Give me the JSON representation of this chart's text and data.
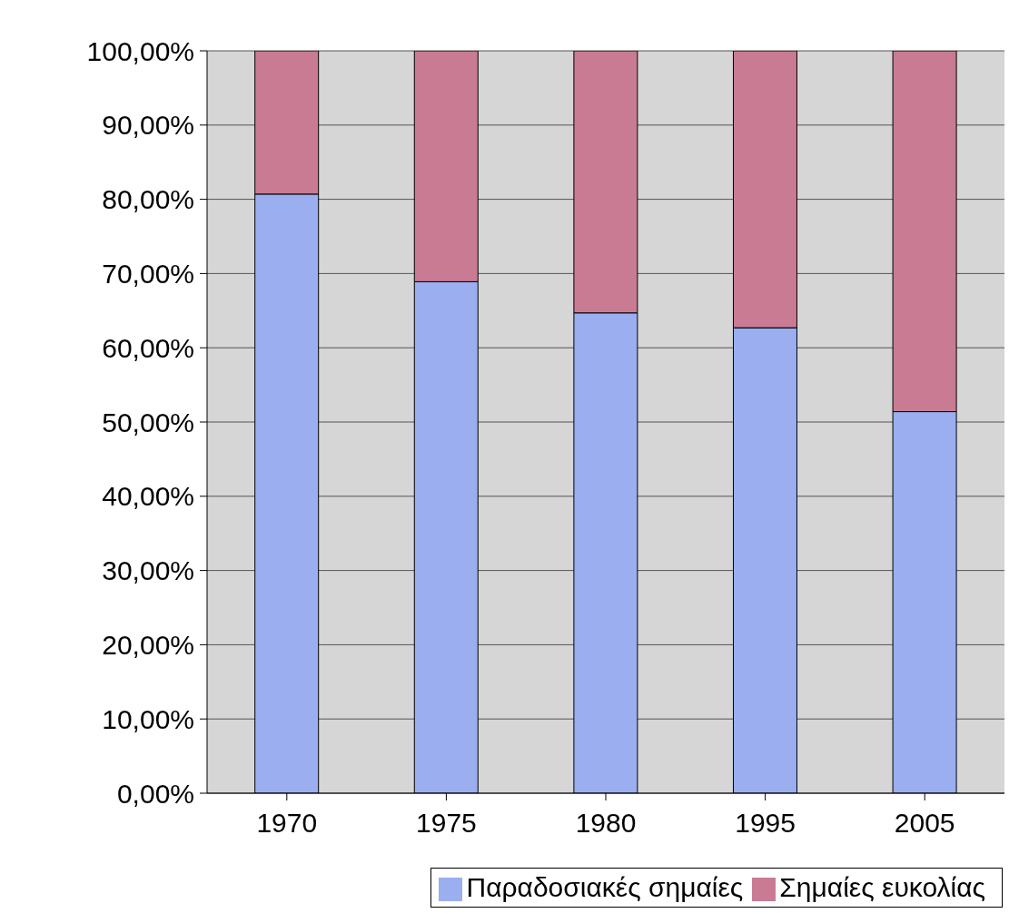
{
  "chart_data": {
    "type": "bar",
    "stacked": true,
    "categories": [
      "1970",
      "1975",
      "1980",
      "1995",
      "2005"
    ],
    "series": [
      {
        "name": "Παραδοσιακές σημαίες",
        "color": "#9aaef0",
        "values": [
          80.7,
          68.9,
          64.7,
          62.7,
          51.4
        ]
      },
      {
        "name": "Σημαίες ευκολίας",
        "color": "#c97b93",
        "values": [
          19.3,
          31.1,
          35.3,
          37.3,
          48.6
        ]
      }
    ],
    "ylim": [
      0,
      100
    ],
    "yticks": [
      {
        "value": 0,
        "label": "0,00%"
      },
      {
        "value": 10,
        "label": "10,00%"
      },
      {
        "value": 20,
        "label": "20,00%"
      },
      {
        "value": 30,
        "label": "30,00%"
      },
      {
        "value": 40,
        "label": "40,00%"
      },
      {
        "value": 50,
        "label": "50,00%"
      },
      {
        "value": 60,
        "label": "60,00%"
      },
      {
        "value": 70,
        "label": "70,00%"
      },
      {
        "value": 80,
        "label": "80,00%"
      },
      {
        "value": 90,
        "label": "90,00%"
      },
      {
        "value": 100,
        "label": "100,00%"
      }
    ],
    "grid": "y",
    "legend": "bottom right"
  }
}
